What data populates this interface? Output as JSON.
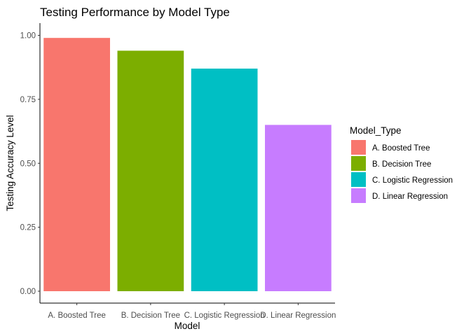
{
  "chart_data": {
    "type": "bar",
    "title": "Testing Performance by Model Type",
    "xlabel": "Model",
    "ylabel": "Testing Accuracy Level",
    "categories": [
      "A. Boosted Tree",
      "B. Decision Tree",
      "C. Logistic Regression",
      "D. Linear Regression"
    ],
    "values": [
      0.99,
      0.94,
      0.87,
      0.65
    ],
    "colors": [
      "#F8766D",
      "#7CAE00",
      "#00BFC4",
      "#C77CFF"
    ],
    "ylim": [
      0,
      1.03
    ],
    "yticks": [
      0.0,
      0.25,
      0.5,
      0.75,
      1.0
    ],
    "ytick_labels": [
      "0.00",
      "0.25",
      "0.50",
      "0.75",
      "1.00"
    ],
    "grid": false,
    "legend": {
      "title": "Model_Type",
      "position": "right",
      "entries": [
        "A. Boosted Tree",
        "B. Decision Tree",
        "C. Logistic Regression",
        "D. Linear Regression"
      ]
    }
  }
}
